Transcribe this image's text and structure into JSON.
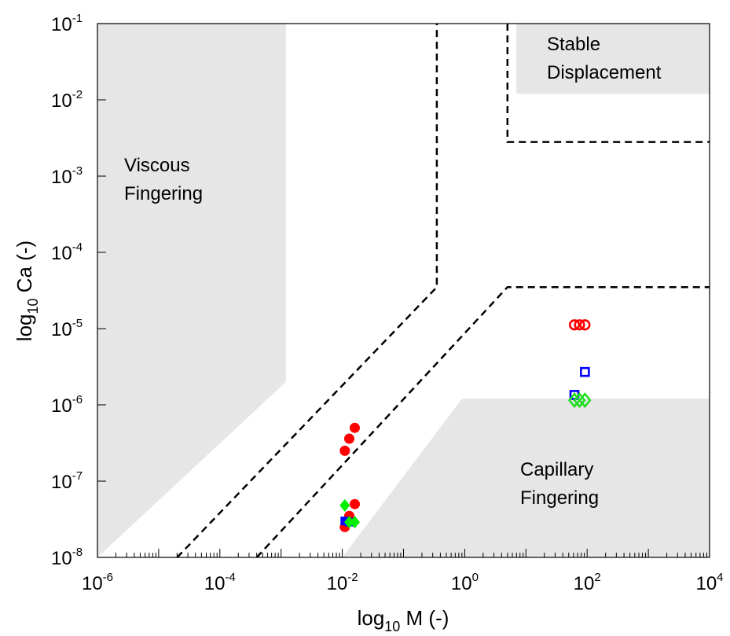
{
  "chart_data": {
    "type": "scatter",
    "xlabel": {
      "base": "log",
      "sub": "10",
      "rest": " M (-)"
    },
    "ylabel": {
      "base": "log",
      "sub": "10",
      "rest": " Ca (-)"
    },
    "x_log_scale": true,
    "y_log_scale": true,
    "xlim": [
      1e-06,
      10000.0
    ],
    "ylim": [
      1e-08,
      0.1
    ],
    "x_ticks": [
      {
        "base": "10",
        "exp": "-6"
      },
      {
        "base": "10",
        "exp": "-4"
      },
      {
        "base": "10",
        "exp": "-2"
      },
      {
        "base": "10",
        "exp": "0"
      },
      {
        "base": "10",
        "exp": "2"
      },
      {
        "base": "10",
        "exp": "4"
      }
    ],
    "y_ticks": [
      {
        "base": "10",
        "exp": "-8"
      },
      {
        "base": "10",
        "exp": "-7"
      },
      {
        "base": "10",
        "exp": "-6"
      },
      {
        "base": "10",
        "exp": "-5"
      },
      {
        "base": "10",
        "exp": "-4"
      },
      {
        "base": "10",
        "exp": "-3"
      },
      {
        "base": "10",
        "exp": "-2"
      },
      {
        "base": "10",
        "exp": "-1"
      }
    ],
    "grid": false,
    "regions": [
      {
        "id": "viscous",
        "label": [
          "Viscous",
          "Fingering"
        ],
        "fill": "#e6e6e6",
        "polygon": [
          [
            1e-06,
            1e-08
          ],
          [
            1e-06,
            0.1
          ],
          [
            0.0012,
            0.1
          ],
          [
            0.0012,
            2e-06
          ]
        ]
      },
      {
        "id": "capillary",
        "label": [
          "Capillary",
          "Fingering"
        ],
        "fill": "#e6e6e6",
        "polygon": [
          [
            0.01,
            1e-08
          ],
          [
            10000.0,
            1e-08
          ],
          [
            10000.0,
            1.2e-06
          ],
          [
            0.9,
            1.2e-06
          ]
        ]
      },
      {
        "id": "stable",
        "label": [
          "Stable",
          "Displacement"
        ],
        "fill": "#e6e6e6",
        "polygon": [
          [
            7,
            0.012
          ],
          [
            10000.0,
            0.012
          ],
          [
            10000.0,
            0.1
          ],
          [
            7,
            0.1
          ]
        ]
      }
    ],
    "boundaries": [
      {
        "id": "left-boundary",
        "points": [
          [
            2e-05,
            1e-08
          ],
          [
            0.35,
            3.5e-05
          ],
          [
            0.35,
            0.1
          ]
        ]
      },
      {
        "id": "right-boundary",
        "points": [
          [
            0.0004,
            1e-08
          ],
          [
            5,
            3.5e-05
          ],
          [
            10000.0,
            3.5e-05
          ]
        ]
      },
      {
        "id": "stable-boundary",
        "points": [
          [
            5,
            0.1
          ],
          [
            5,
            0.0028
          ],
          [
            10000.0,
            0.0028
          ]
        ]
      }
    ],
    "series": [
      {
        "id": "red-filled-circles",
        "marker": "circle",
        "filled": true,
        "color": "#ff0000",
        "x": [
          0.011,
          0.013,
          0.016,
          0.011,
          0.013,
          0.016
        ],
        "y": [
          2.5e-07,
          3.6e-07,
          5e-07,
          2.5e-08,
          3.5e-08,
          5e-08
        ]
      },
      {
        "id": "blue-filled-squares",
        "marker": "square",
        "filled": true,
        "color": "#0000ff",
        "x": [
          0.011,
          0.013
        ],
        "y": [
          3e-08,
          2.9e-08
        ]
      },
      {
        "id": "green-filled-diamonds",
        "marker": "diamond",
        "filled": true,
        "color": "#00ee00",
        "x": [
          0.011,
          0.013,
          0.016
        ],
        "y": [
          4.8e-08,
          2.9e-08,
          2.9e-08
        ]
      },
      {
        "id": "red-open-circles",
        "marker": "circle",
        "filled": false,
        "color": "#ff0000",
        "x": [
          62,
          75,
          92
        ],
        "y": [
          1.12e-05,
          1.12e-05,
          1.12e-05
        ]
      },
      {
        "id": "blue-open-squares",
        "marker": "square",
        "filled": false,
        "color": "#0000ff",
        "x": [
          62,
          92
        ],
        "y": [
          1.35e-06,
          2.7e-06
        ]
      },
      {
        "id": "green-open-diamonds",
        "marker": "diamond",
        "filled": false,
        "color": "#22dd22",
        "x": [
          62,
          75,
          92
        ],
        "y": [
          1.15e-06,
          1.15e-06,
          1.15e-06
        ]
      }
    ]
  }
}
